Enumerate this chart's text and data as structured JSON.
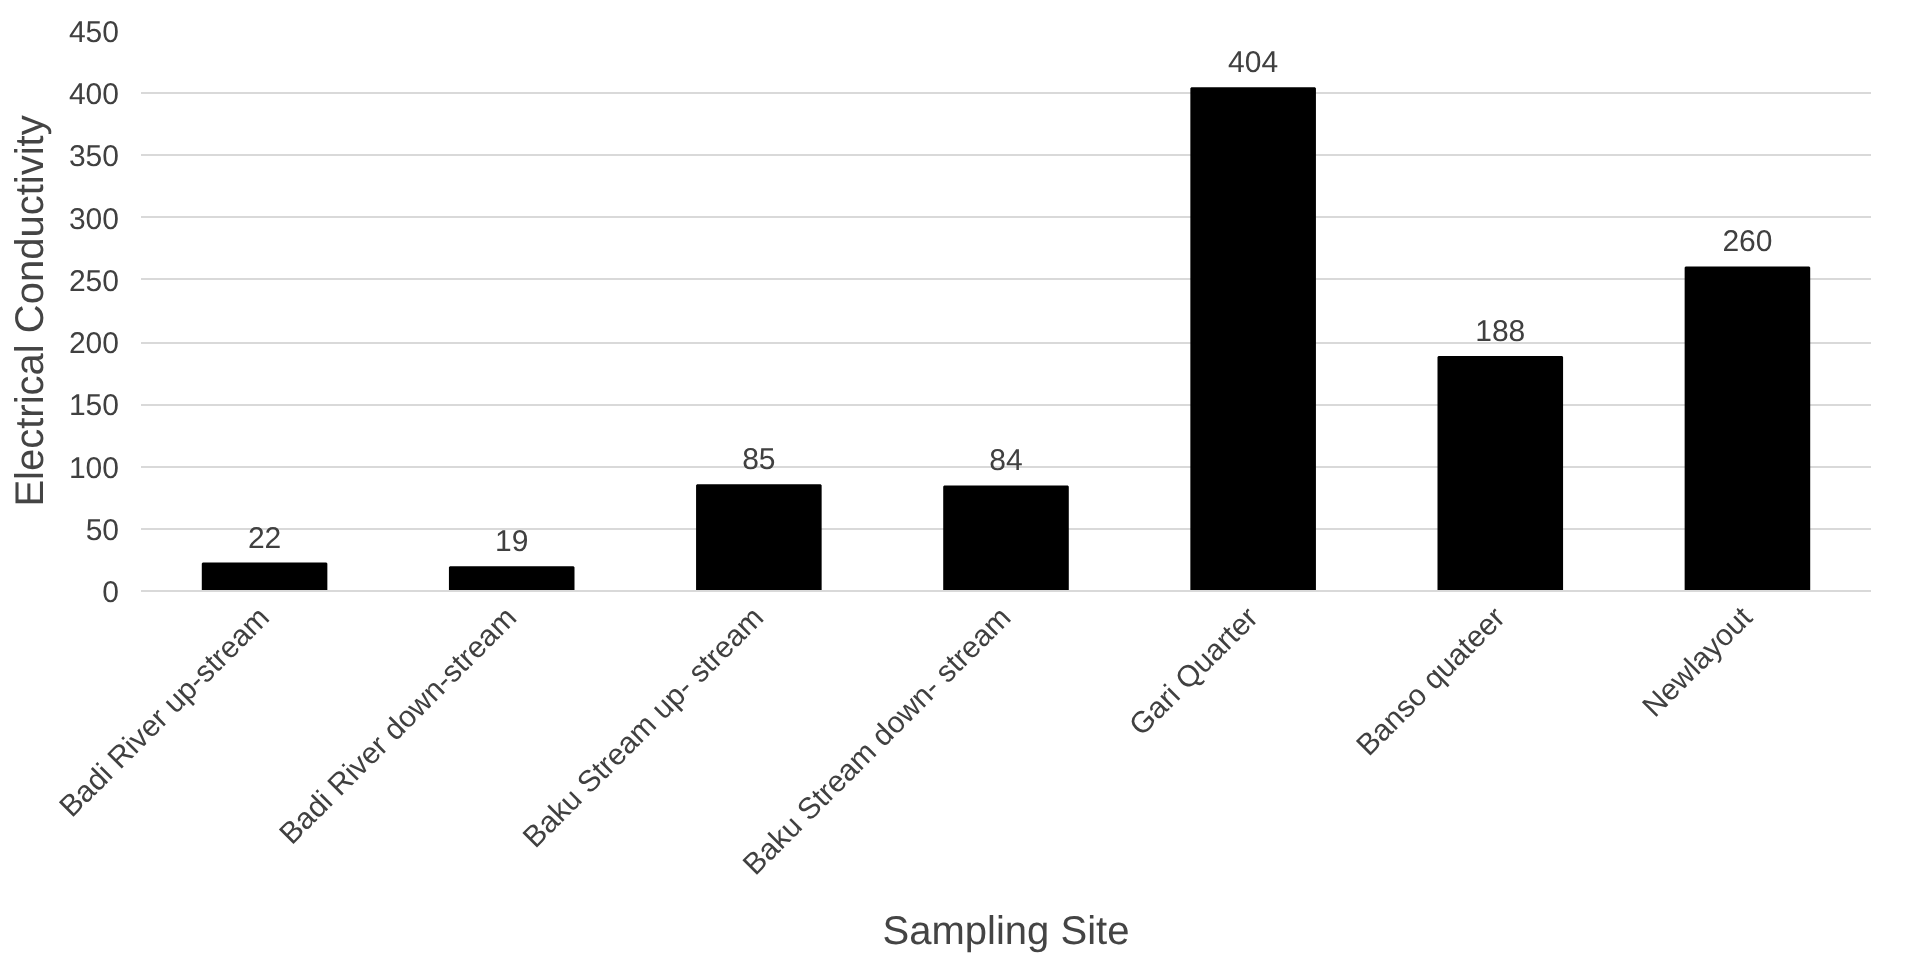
{
  "chart_data": {
    "type": "bar",
    "xlabel": "Sampling Site",
    "ylabel": "Electrical Conductivity",
    "categories": [
      "Badi River up-stream",
      "Badi River down-stream",
      "Baku Stream up- stream",
      "Baku Stream down- stream",
      "Gari Quarter",
      "Banso quateer",
      "Newlayout"
    ],
    "values": [
      22,
      19,
      85,
      84,
      404,
      188,
      260
    ],
    "color": "#000000",
    "ylim": [
      0,
      450
    ],
    "yticks": [
      0,
      50,
      100,
      150,
      200,
      250,
      300,
      350,
      400,
      450
    ],
    "grid": "y",
    "data_labels": true
  }
}
